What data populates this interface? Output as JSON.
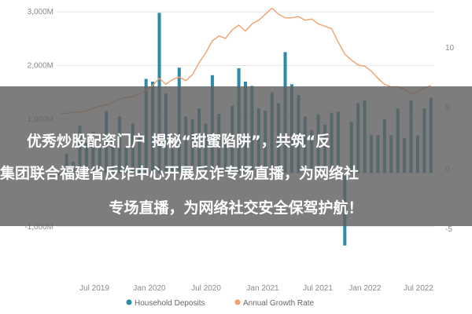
{
  "colors": {
    "bars": "#2e8aa6",
    "line": "#f0a06c",
    "grid": "#e6e6e6",
    "axis_text": "#8a8a8a",
    "overlay": "#606060"
  },
  "chart_data": {
    "type": "bar",
    "x_ticks": [
      "Jul 2019",
      "Jan 2020",
      "Jul 2020",
      "Jan 2021",
      "Jul 2021",
      "Jan 2022",
      "Jul 2022"
    ],
    "y_left_ticks": [
      "3,000M",
      "2,000M",
      "1,000M",
      "0",
      "-1,000M"
    ],
    "y_right_ticks": [
      "10",
      "5",
      "0",
      "-5"
    ],
    "ylim_left": [
      -1500,
      3000
    ],
    "ylim_right": [
      -7,
      13
    ],
    "grid": true,
    "legend_position": "bottom",
    "series": [
      {
        "name": "Household Deposits",
        "type": "bar",
        "axis": "left",
        "values": [
          -50,
          360,
          210,
          880,
          560,
          760,
          480,
          1150,
          640,
          1050,
          480,
          920,
          730,
          1750,
          1700,
          2980,
          1480,
          450,
          1960,
          1050,
          1000,
          1200,
          920,
          1820,
          1100,
          600,
          1250,
          1950,
          1700,
          1620,
          1200,
          1160,
          1500,
          1300,
          2250,
          1650,
          1450,
          1050,
          800,
          1090,
          900,
          1120,
          1140,
          -1350,
          950,
          1300,
          1350,
          700,
          700,
          1000,
          700,
          1200,
          650,
          1350,
          700,
          1200,
          1400
        ]
      },
      {
        "name": "Annual Growth Rate",
        "type": "line",
        "axis": "right",
        "values": [
          4.6,
          4.6,
          4.7,
          4.7,
          4.8,
          5.0,
          5.2,
          5.3,
          5.5,
          5.8,
          5.9,
          6.0,
          6.2,
          6.5,
          6.9,
          7.5,
          7.0,
          7.4,
          7.6,
          7.3,
          7.8,
          8.8,
          9.6,
          10.6,
          11.0,
          10.8,
          11.5,
          11.9,
          11.4,
          12.0,
          12.3,
          12.8,
          13.3,
          12.8,
          12.5,
          12.5,
          12.6,
          12.3,
          12.4,
          12.0,
          11.8,
          11.6,
          10.5,
          9.5,
          9.0,
          8.6,
          8.5,
          8.1,
          7.5,
          7.0,
          6.8,
          6.8,
          6.6,
          6.2,
          6.4,
          6.7,
          6.9
        ]
      }
    ]
  },
  "overlay": {
    "line1": "优秀炒股配资门户 揭秘“甜蜜陷阱”，共筑“反",
    "line2": "集团联合福建省反诈中心开展反诈专场直播，为网络社",
    "line3": "专场直播，为网络社交安全保驾护航！"
  }
}
